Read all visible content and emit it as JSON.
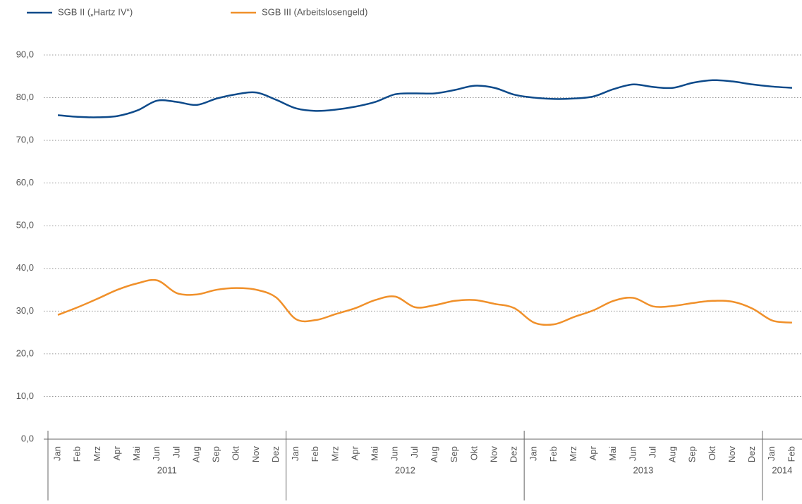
{
  "chart_data": {
    "type": "line",
    "categories": [
      "Jan",
      "Feb",
      "Mrz",
      "Apr",
      "Mai",
      "Jun",
      "Jul",
      "Aug",
      "Sep",
      "Okt",
      "Nov",
      "Dez",
      "Jan",
      "Feb",
      "Mrz",
      "Apr",
      "Mai",
      "Jun",
      "Jul",
      "Aug",
      "Sep",
      "Okt",
      "Nov",
      "Dez",
      "Jan",
      "Feb",
      "Mrz",
      "Apr",
      "Mai",
      "Jun",
      "Jul",
      "Aug",
      "Sep",
      "Okt",
      "Nov",
      "Dez",
      "Jan",
      "Feb"
    ],
    "year_labels": [
      "2011",
      "2012",
      "2013",
      "2014"
    ],
    "series": [
      {
        "name": "SGB II („Hartz IV“)",
        "color": "#0d4a8a",
        "values": [
          75.9,
          75.5,
          75.4,
          75.7,
          77.0,
          79.3,
          79.0,
          78.3,
          79.8,
          80.8,
          81.2,
          79.5,
          77.5,
          76.9,
          77.2,
          77.9,
          79.0,
          80.8,
          81.0,
          81.0,
          81.8,
          82.8,
          82.3,
          80.7,
          80.0,
          79.7,
          79.8,
          80.3,
          82.0,
          83.1,
          82.5,
          82.3,
          83.5,
          84.1,
          83.8,
          83.1,
          82.6,
          82.3
        ]
      },
      {
        "name": "SGB III (Arbeitslosengeld)",
        "color": "#f0902a",
        "values": [
          29.1,
          30.9,
          32.9,
          35.0,
          36.5,
          37.2,
          34.2,
          33.9,
          35.0,
          35.4,
          35.0,
          33.2,
          28.1,
          27.9,
          29.3,
          30.7,
          32.6,
          33.4,
          30.9,
          31.4,
          32.4,
          32.6,
          31.7,
          30.7,
          27.3,
          26.9,
          28.6,
          30.2,
          32.4,
          33.1,
          31.1,
          31.2,
          31.9,
          32.4,
          32.2,
          30.6,
          27.8,
          27.3
        ]
      }
    ],
    "ylim": [
      0,
      90
    ],
    "yticks": [
      {
        "value": 0,
        "label": "0,0"
      },
      {
        "value": 10,
        "label": "10,0"
      },
      {
        "value": 20,
        "label": "20,0"
      },
      {
        "value": 30,
        "label": "30,0"
      },
      {
        "value": 40,
        "label": "40,0"
      },
      {
        "value": 50,
        "label": "50,0"
      },
      {
        "value": 60,
        "label": "60,0"
      },
      {
        "value": 70,
        "label": "70,0"
      },
      {
        "value": 80,
        "label": "80,0"
      },
      {
        "value": 90,
        "label": "90,0"
      }
    ],
    "grid": true
  }
}
